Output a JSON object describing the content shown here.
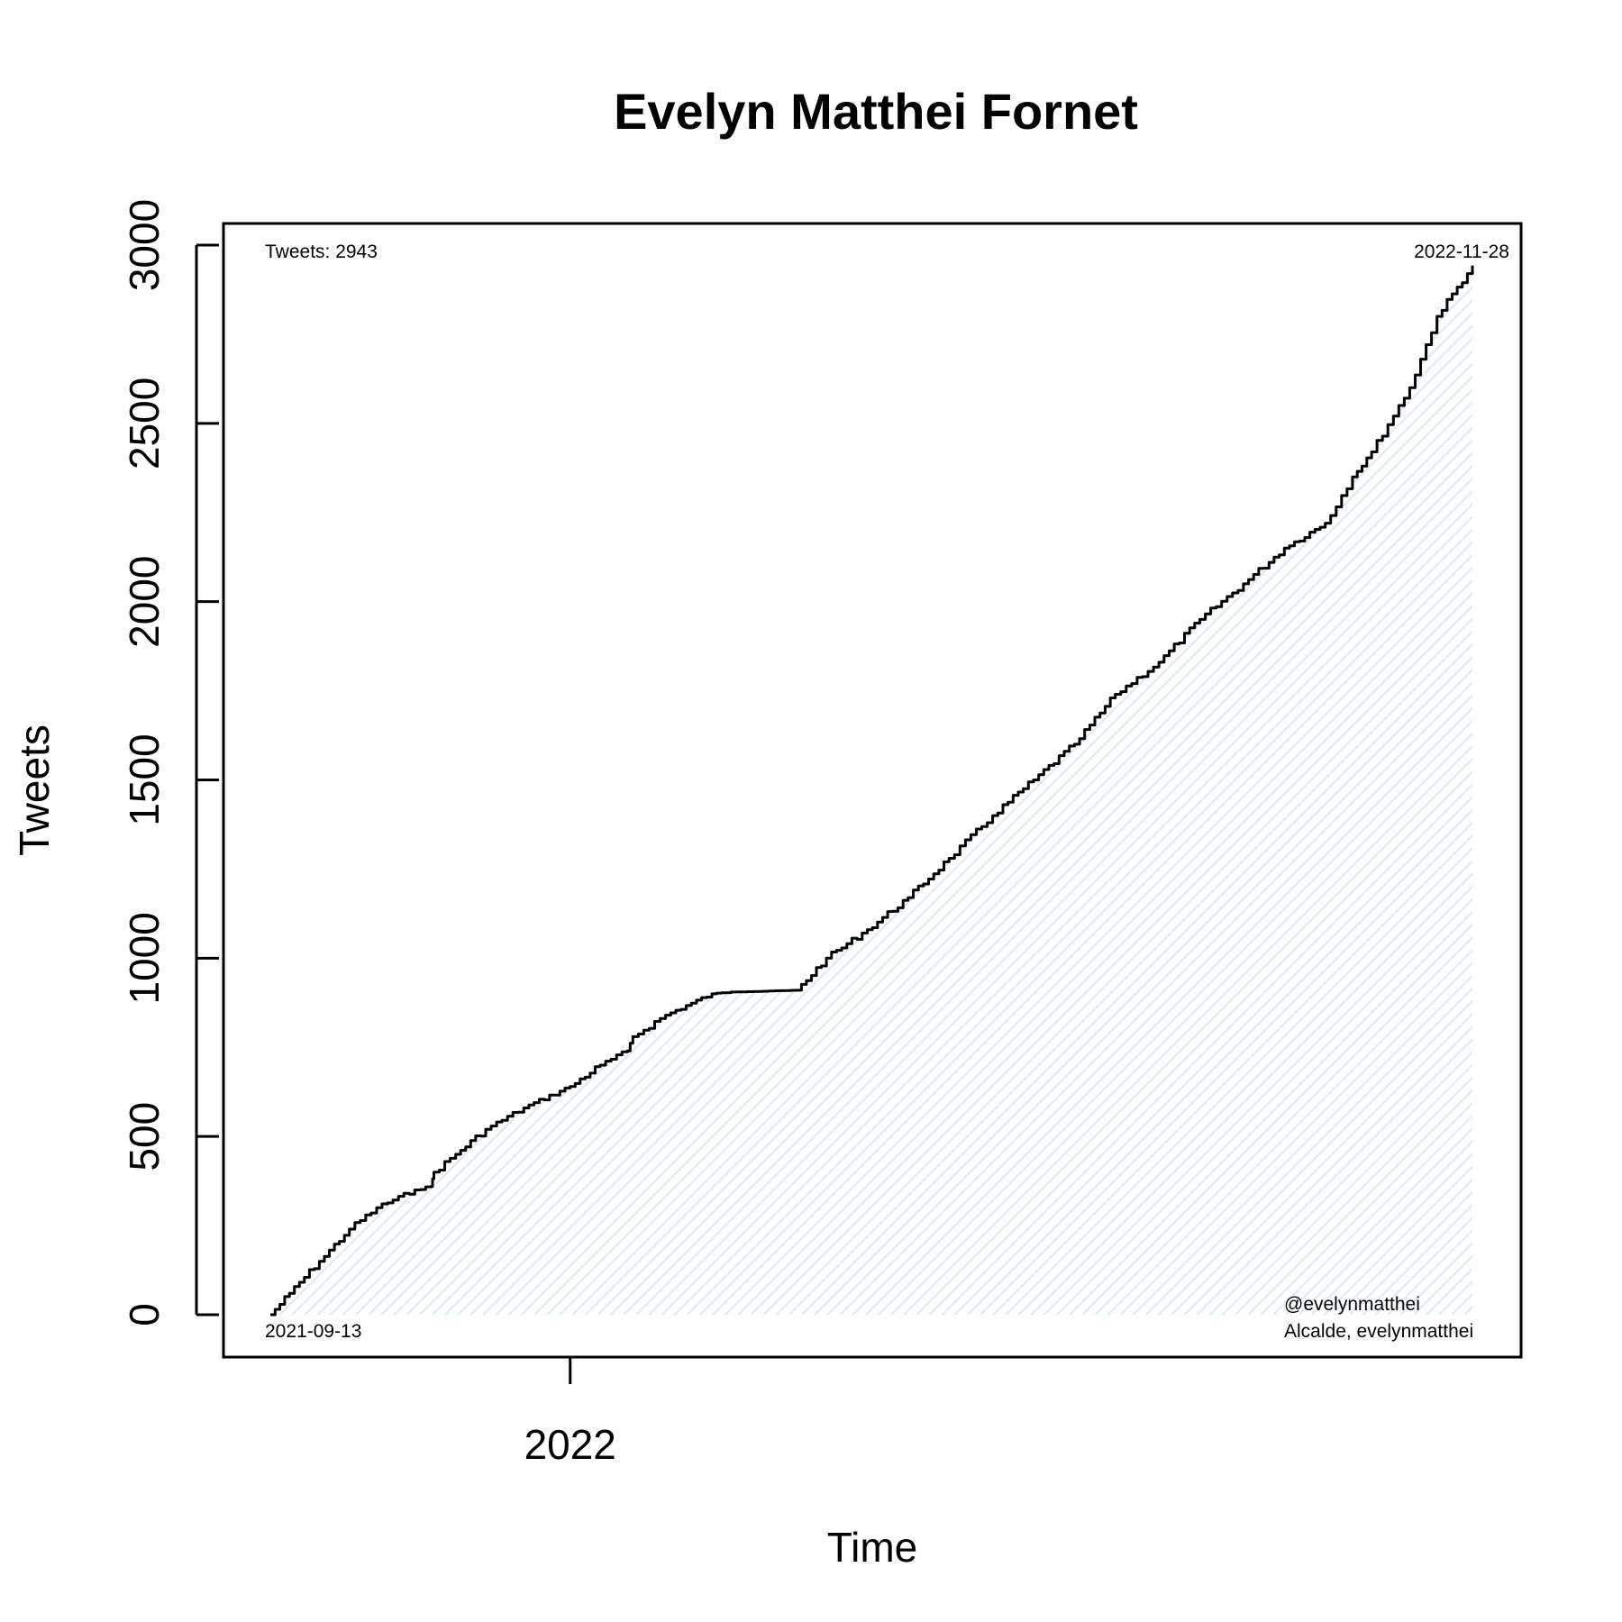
{
  "chart_data": {
    "type": "area",
    "title": "Evelyn Matthei Fornet",
    "xlabel": "Time",
    "ylabel": "Tweets",
    "xlim": [
      "2021-09-13",
      "2022-11-28"
    ],
    "ylim": [
      0,
      3000
    ],
    "x_ticks": [
      "2022"
    ],
    "x_tick_positions": [
      "2022-01-01"
    ],
    "y_ticks": [
      0,
      500,
      1000,
      1500,
      2000,
      2500,
      3000
    ],
    "grid": false,
    "colors": {
      "line": "#000000",
      "fill_hatch": "#d7ecf3",
      "frame": "#000000"
    },
    "annotations": {
      "tweet_count": "Tweets: 2943",
      "start_date": "2021-09-13",
      "end_date": "2022-11-28",
      "handle": "@evelynmatthei",
      "description": "Alcalde, evelynmatthei"
    },
    "series": [
      {
        "x": [
          "2021-09-13",
          "2021-09-20",
          "2021-10-01",
          "2021-10-12",
          "2021-10-22",
          "2021-11-05",
          "2021-11-11",
          "2021-11-12",
          "2021-11-20",
          "2021-12-01",
          "2021-12-15",
          "2022-01-01",
          "2022-01-12",
          "2022-01-22",
          "2022-01-24",
          "2022-02-05",
          "2022-02-22",
          "2022-03-01",
          "2022-03-25",
          "2022-04-05",
          "2022-04-20",
          "2022-05-05",
          "2022-05-20",
          "2022-06-05",
          "2022-06-20",
          "2022-07-05",
          "2022-07-20",
          "2022-08-05",
          "2022-08-20",
          "2022-09-05",
          "2022-09-20",
          "2022-10-05",
          "2022-10-15",
          "2022-10-22",
          "2022-11-05",
          "2022-11-15",
          "2022-11-28"
        ],
        "y": [
          0,
          60,
          150,
          240,
          300,
          350,
          360,
          400,
          450,
          520,
          580,
          640,
          700,
          740,
          780,
          840,
          900,
          905,
          910,
          1000,
          1080,
          1170,
          1280,
          1400,
          1500,
          1600,
          1740,
          1830,
          1950,
          2050,
          2150,
          2220,
          2350,
          2420,
          2600,
          2800,
          2943
        ]
      }
    ]
  }
}
